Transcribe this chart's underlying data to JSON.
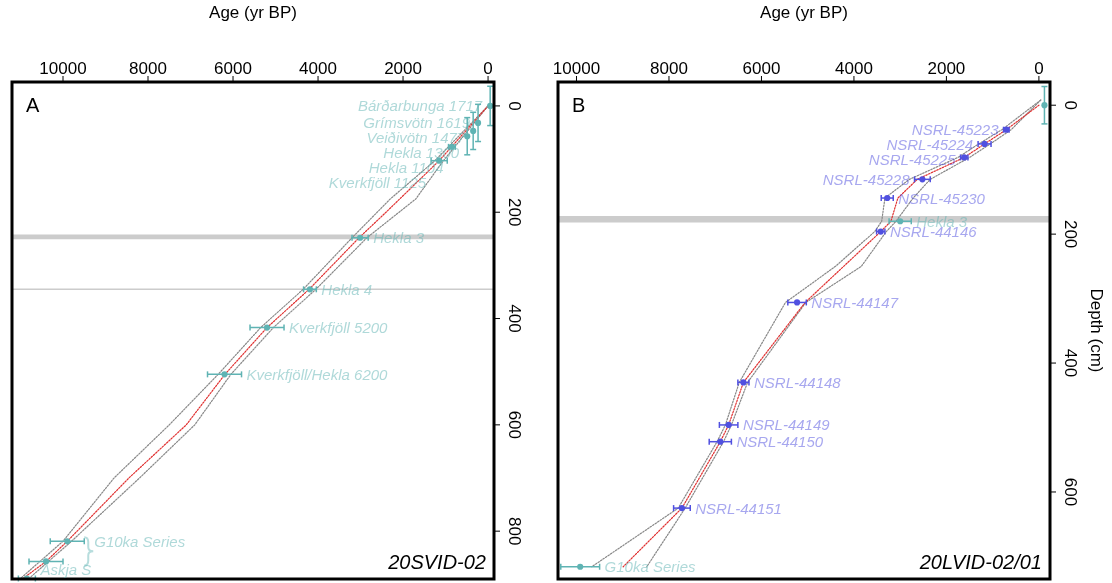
{
  "chart_data": [
    {
      "type": "line",
      "xlabel": "Age (yr BP)",
      "xlim": [
        11200,
        -140
      ],
      "xticks": [
        10000,
        8000,
        6000,
        4000,
        2000,
        0
      ],
      "ylim": [
        890,
        -45
      ],
      "yticks": [
        0,
        200,
        400,
        600,
        800
      ],
      "annotations": [
        "A",
        "20SVID-02"
      ],
      "bands": [
        {
          "axis": "y",
          "from": 242,
          "to": 251,
          "color": "#cccccc"
        }
      ],
      "ref_lines": [
        {
          "axis": "y",
          "value": 345,
          "color": "#cccccc"
        }
      ],
      "series": [
        {
          "color": "#888888",
          "line_style": "dotted",
          "x": [
            0,
            1050,
            1700,
            2850,
            4050,
            5050,
            6050,
            6900,
            8200,
            9800,
            10800
          ],
          "values": [
            0,
            103,
            175,
            248,
            345,
            417,
            505,
            600,
            700,
            819,
            889
          ]
        },
        {
          "color": "#888888",
          "line_style": "dotted",
          "x": [
            0,
            1250,
            2300,
            3200,
            4350,
            5350,
            6350,
            7500,
            8800,
            10000,
            11000
          ],
          "values": [
            0,
            103,
            175,
            248,
            345,
            417,
            505,
            600,
            700,
            819,
            889
          ]
        },
        {
          "color": "#e03030",
          "line_style": "dotted",
          "x": [
            0,
            1150,
            2400,
            3035,
            4210,
            5200,
            6190,
            7100,
            8450,
            9900,
            10400,
            10940
          ],
          "values": [
            0,
            103,
            200,
            248,
            345,
            417,
            505,
            600,
            700,
            819,
            857,
            889
          ]
        },
        {
          "type": "scatter",
          "color": "#5fb3b3",
          "marker": "circle",
          "x": [
            -50,
            235,
            350,
            490,
            850,
            1150,
            3010,
            4190,
            5200,
            6200,
            9900,
            10400,
            10850
          ],
          "values": [
            0,
            32,
            47,
            57,
            77,
            103,
            248,
            345,
            417,
            505,
            819,
            857,
            889
          ],
          "errors": [
            37,
            35,
            35,
            35,
            null,
            null,
            null,
            null,
            null,
            null,
            null,
            null,
            null
          ],
          "xerrors": [
            null,
            null,
            null,
            null,
            80,
            190,
            190,
            150,
            400,
            400,
            400,
            400,
            200
          ],
          "value_labels": [
            "Bárðarbunga 1717",
            "Grímsvötn 1619",
            "Veiðivötn 1477",
            "Hekla 1300",
            "Hekla 1104",
            "Kverkfjöll 1125",
            "Hekla 3",
            "Hekla 4",
            "Kverkfjöll 5200",
            "Kverkfjöll/Hekla 6200",
            "G10ka Series",
            null,
            "Askja S"
          ]
        }
      ]
    },
    {
      "type": "line",
      "xlabel": "Age (yr BP)",
      "ylabel": "Depth (cm)",
      "xlim": [
        10400,
        -240
      ],
      "xticks": [
        10000,
        8000,
        6000,
        4000,
        2000,
        0
      ],
      "ylim": [
        735,
        -36
      ],
      "yticks": [
        0,
        200,
        400,
        600
      ],
      "annotations": [
        "B",
        "20LVID-02/01"
      ],
      "bands": [
        {
          "axis": "y",
          "from": 172,
          "to": 182,
          "color": "#cccccc"
        }
      ],
      "series": [
        {
          "color": "#888888",
          "line_style": "dotted",
          "x": [
            -40,
            600,
            1050,
            1500,
            2350,
            2720,
            3090,
            3300,
            3840,
            5040,
            6300,
            6650,
            6820,
            7650,
            8480
          ],
          "values": [
            -8,
            38,
            60,
            81,
            115,
            144,
            180,
            196,
            250,
            306,
            430,
            496,
            522,
            625,
            716
          ]
        },
        {
          "color": "#888888",
          "line_style": "dotted",
          "x": [
            -40,
            800,
            1300,
            1750,
            2800,
            3330,
            3400,
            3550,
            4400,
            5480,
            6480,
            6780,
            6960,
            7800,
            9670
          ],
          "values": [
            -8,
            38,
            60,
            81,
            115,
            144,
            180,
            196,
            250,
            306,
            430,
            496,
            522,
            625,
            716
          ]
        },
        {
          "color": "#e03030",
          "line_style": "dotted",
          "x": [
            0,
            705,
            1175,
            1615,
            2630,
            3050,
            3200,
            3420,
            5055,
            6390,
            6710,
            6890,
            7720,
            8990
          ],
          "values": [
            0,
            38,
            60,
            81,
            115,
            144,
            180,
            196,
            306,
            430,
            496,
            522,
            625,
            716
          ]
        },
        {
          "type": "scatter",
          "color": "#5050e0",
          "marker": "circle",
          "x": [
            705,
            1175,
            1615,
            2520,
            3280,
            3420,
            5230,
            6390,
            6710,
            6890,
            7720
          ],
          "values": [
            38,
            60,
            81,
            115,
            144,
            196,
            306,
            430,
            496,
            522,
            625
          ],
          "xerrors": [
            60,
            140,
            80,
            170,
            130,
            90,
            200,
            120,
            200,
            240,
            180
          ],
          "value_labels": [
            "NSRL-45223",
            "NSRL-45224",
            "NSRL-45225",
            "NSRL-45228",
            "NSRL-45230",
            "NSRL-44146",
            "NSRL-44147",
            "NSRL-44148",
            "NSRL-44149",
            "NSRL-44150",
            "NSRL-44151"
          ]
        },
        {
          "type": "scatter",
          "color": "#5fb3b3",
          "marker": "circle",
          "x": [
            -120,
            3000,
            9920
          ],
          "values": [
            0,
            180,
            716
          ],
          "errors": [
            29,
            null,
            null
          ],
          "xerrors": [
            null,
            240,
            420
          ],
          "value_labels": [
            null,
            "Hekla 3",
            "G10ka Series"
          ]
        }
      ]
    }
  ]
}
